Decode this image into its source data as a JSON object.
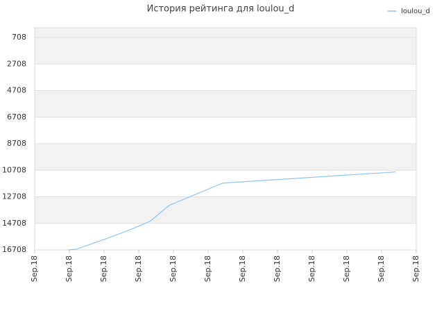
{
  "chart_data": {
    "type": "line",
    "title": "История рейтинга для loulou_d",
    "x": [
      0.96,
      1.2,
      2.0,
      2.6,
      3.32,
      3.88,
      4.94,
      5.42,
      10.4
    ],
    "series": [
      {
        "name": "loulou_d",
        "color": "#90c4f0",
        "values": [
          16708,
          16656,
          15920,
          15346,
          14560,
          13352,
          12198,
          11673,
          10834
        ]
      }
    ],
    "xlim": [
      0,
      11
    ],
    "xticks": [
      {
        "value": 0,
        "label": "Sep.18"
      },
      {
        "value": 1,
        "label": "Sep.18"
      },
      {
        "value": 2,
        "label": "Sep.18"
      },
      {
        "value": 3,
        "label": "Sep.18"
      },
      {
        "value": 4,
        "label": "Sep.18"
      },
      {
        "value": 5,
        "label": "Sep.18"
      },
      {
        "value": 6,
        "label": "Sep.18"
      },
      {
        "value": 7,
        "label": "Sep.18"
      },
      {
        "value": 8,
        "label": "Sep.18"
      },
      {
        "value": 9,
        "label": "Sep.18"
      },
      {
        "value": 10,
        "label": "Sep.18"
      },
      {
        "value": 11,
        "label": "Sep.18"
      }
    ],
    "ylim": [
      16708,
      -26
    ],
    "yticks": [
      708,
      2708,
      4708,
      6708,
      8708,
      10708,
      12708,
      14708,
      16708
    ],
    "grid": true,
    "legend": "top-right"
  }
}
